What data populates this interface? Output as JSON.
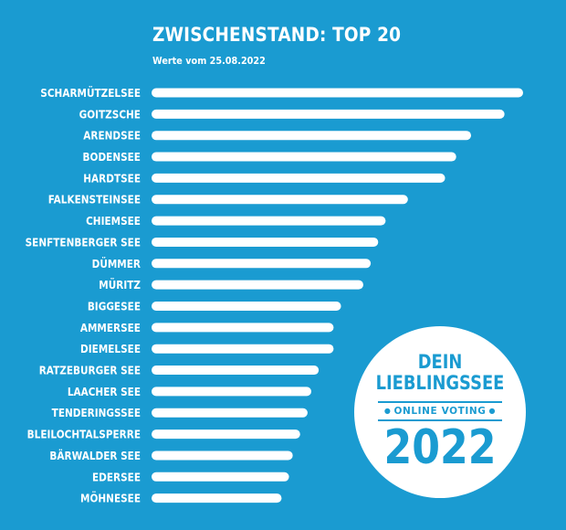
{
  "header": {
    "title": "ZWISCHENSTAND: TOP 20",
    "subtitle": "Werte vom 25.08.2022"
  },
  "badge": {
    "line1": "DEIN",
    "line2": "LIEBLINGSSEE",
    "sub": "ONLINE VOTING",
    "year": "2022"
  },
  "colors": {
    "background": "#1a9bd1",
    "bar": "#ffffff",
    "text": "#ffffff"
  },
  "chart_data": {
    "type": "bar",
    "orientation": "horizontal",
    "title": "ZWISCHENSTAND: TOP 20",
    "subtitle": "Werte vom 25.08.2022",
    "categories": [
      "SCHARMÜTZELSEE",
      "GOITZSCHE",
      "ARENDSEE",
      "BODENSEE",
      "HARDTSEE",
      "FALKENSTEINSEE",
      "CHIEMSEE",
      "SENFTENBERGER SEE",
      "DÜMMER",
      "MÜRITZ",
      "BIGGESEE",
      "AMMERSEE",
      "DIEMELSEE",
      "RATZEBURGER SEE",
      "LAACHER SEE",
      "TENDERINGSSEE",
      "BLEILOCHTALSPERRE",
      "BÄRWALDER SEE",
      "EDERSEE",
      "MÖHNESEE"
    ],
    "values": [
      100,
      95,
      86,
      82,
      79,
      69,
      63,
      61,
      59,
      57,
      51,
      49,
      49,
      45,
      43,
      42,
      40,
      38,
      37,
      35
    ],
    "value_axis_shown": false,
    "grid": false,
    "legend": "none"
  }
}
